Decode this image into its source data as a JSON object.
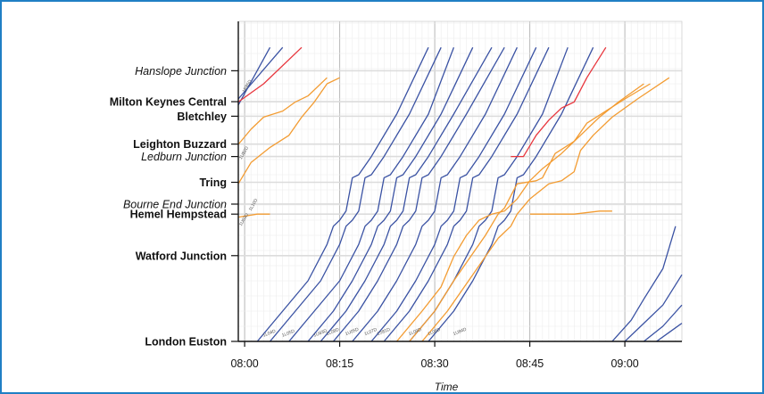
{
  "chart_data": {
    "type": "line",
    "title": "",
    "xlabel": "Time",
    "ylabel": "",
    "x_ticks": [
      "08:00",
      "08:15",
      "08:30",
      "08:45",
      "09:00"
    ],
    "x_range_minutes": [
      -1,
      69
    ],
    "grid": true,
    "stations": [
      {
        "name": "Hanslope Junction",
        "style": "italic",
        "pos": 89.3
      },
      {
        "name": "Milton Keynes Central",
        "style": "bold",
        "pos": 79.1
      },
      {
        "name": "Bletchley",
        "style": "bold",
        "pos": 74.3
      },
      {
        "name": "Leighton Buzzard",
        "style": "bold",
        "pos": 65.1
      },
      {
        "name": "Ledburn Junction",
        "style": "italic",
        "pos": 61.0
      },
      {
        "name": "Tring",
        "style": "bold",
        "pos": 52.5
      },
      {
        "name": "Bourne End Junction",
        "style": "italic",
        "pos": 45.3
      },
      {
        "name": "Hemel Hempstead",
        "style": "bold",
        "pos": 42.0
      },
      {
        "name": "Watford Junction",
        "style": "bold",
        "pos": 28.3
      },
      {
        "name": "London Euston",
        "style": "bold",
        "pos": 0.0
      }
    ],
    "colors": {
      "fast": "#3a52a3",
      "slow": "#f39c32",
      "red": "#e8363d",
      "grid": "#e3e3e3",
      "axis": "#111111"
    },
    "series": [
      {
        "color": "fast",
        "points": [
          [
            -1,
            78
          ],
          [
            4,
            97
          ]
        ]
      },
      {
        "color": "fast",
        "points": [
          [
            -1,
            80
          ],
          [
            6,
            97
          ]
        ]
      },
      {
        "color": "red",
        "points": [
          [
            -1,
            79
          ],
          [
            3,
            85
          ],
          [
            9,
            97
          ]
        ]
      },
      {
        "color": "slow",
        "points": [
          [
            -1,
            65
          ],
          [
            1,
            70
          ],
          [
            3,
            74
          ],
          [
            6,
            76
          ],
          [
            8,
            79
          ],
          [
            10,
            81
          ],
          [
            13,
            87
          ]
        ]
      },
      {
        "color": "slow",
        "points": [
          [
            -1,
            52
          ],
          [
            1,
            59
          ],
          [
            4,
            64
          ],
          [
            7,
            68
          ],
          [
            9,
            74
          ],
          [
            11,
            79
          ],
          [
            13,
            85
          ],
          [
            15,
            87
          ]
        ]
      },
      {
        "color": "slow",
        "points": [
          [
            -1,
            41
          ],
          [
            2,
            42
          ],
          [
            4,
            42
          ]
        ]
      },
      {
        "color": "fast",
        "points": [
          [
            2,
            0
          ],
          [
            6,
            10
          ],
          [
            10,
            20
          ],
          [
            13,
            32
          ],
          [
            14,
            38
          ],
          [
            15,
            40
          ],
          [
            16,
            43
          ],
          [
            17,
            54
          ],
          [
            18,
            55
          ],
          [
            20,
            61
          ],
          [
            24,
            75
          ],
          [
            29,
            97
          ]
        ]
      },
      {
        "color": "fast",
        "points": [
          [
            4,
            0
          ],
          [
            8,
            10
          ],
          [
            12,
            20
          ],
          [
            15,
            32
          ],
          [
            16,
            38
          ],
          [
            17,
            40
          ],
          [
            18,
            43
          ],
          [
            19,
            54
          ],
          [
            20,
            55
          ],
          [
            22,
            61
          ],
          [
            26,
            75
          ],
          [
            31,
            97
          ]
        ]
      },
      {
        "color": "fast",
        "points": [
          [
            7,
            0
          ],
          [
            11,
            10
          ],
          [
            15,
            20
          ],
          [
            18,
            32
          ],
          [
            19,
            38
          ],
          [
            20,
            40
          ],
          [
            21,
            43
          ],
          [
            22,
            54
          ],
          [
            23,
            55
          ],
          [
            25,
            61
          ],
          [
            29,
            75
          ],
          [
            33,
            97
          ]
        ]
      },
      {
        "color": "fast",
        "points": [
          [
            10,
            0
          ],
          [
            14,
            10
          ],
          [
            17,
            20
          ],
          [
            20,
            32
          ],
          [
            21,
            38
          ],
          [
            22,
            40
          ],
          [
            23,
            43
          ],
          [
            24,
            54
          ],
          [
            25,
            55
          ],
          [
            27,
            61
          ],
          [
            31,
            75
          ],
          [
            36,
            97
          ]
        ]
      },
      {
        "color": "fast",
        "points": [
          [
            12,
            0
          ],
          [
            16,
            10
          ],
          [
            19,
            20
          ],
          [
            22,
            32
          ],
          [
            23,
            38
          ],
          [
            24,
            40
          ],
          [
            25,
            43
          ],
          [
            26,
            54
          ],
          [
            27,
            55
          ],
          [
            29,
            61
          ],
          [
            33,
            75
          ],
          [
            39,
            97
          ]
        ]
      },
      {
        "color": "fast",
        "points": [
          [
            14,
            0
          ],
          [
            18,
            10
          ],
          [
            21,
            20
          ],
          [
            24,
            32
          ],
          [
            25,
            38
          ],
          [
            26,
            40
          ],
          [
            27,
            43
          ],
          [
            28,
            54
          ],
          [
            29,
            55
          ],
          [
            31,
            61
          ],
          [
            35,
            75
          ],
          [
            41,
            97
          ]
        ]
      },
      {
        "color": "fast",
        "points": [
          [
            17,
            0
          ],
          [
            21,
            10
          ],
          [
            24,
            20
          ],
          [
            27,
            32
          ],
          [
            28,
            38
          ],
          [
            29,
            40
          ],
          [
            30,
            43
          ],
          [
            31,
            54
          ],
          [
            32,
            55
          ],
          [
            34,
            61
          ],
          [
            38,
            75
          ],
          [
            43,
            97
          ]
        ]
      },
      {
        "color": "fast",
        "points": [
          [
            20,
            0
          ],
          [
            24,
            10
          ],
          [
            27,
            20
          ],
          [
            30,
            32
          ],
          [
            31,
            38
          ],
          [
            32,
            40
          ],
          [
            33,
            43
          ],
          [
            34,
            54
          ],
          [
            35,
            55
          ],
          [
            37,
            61
          ],
          [
            41,
            75
          ],
          [
            46,
            97
          ]
        ]
      },
      {
        "color": "fast",
        "points": [
          [
            22,
            0
          ],
          [
            26,
            10
          ],
          [
            29,
            20
          ],
          [
            32,
            32
          ],
          [
            33,
            38
          ],
          [
            34,
            40
          ],
          [
            35,
            43
          ],
          [
            36,
            54
          ],
          [
            37,
            55
          ],
          [
            39,
            61
          ],
          [
            43,
            75
          ],
          [
            48,
            97
          ]
        ]
      },
      {
        "color": "fast",
        "points": [
          [
            26,
            0
          ],
          [
            30,
            10
          ],
          [
            33,
            20
          ],
          [
            36,
            32
          ],
          [
            37,
            38
          ],
          [
            38,
            40
          ],
          [
            39,
            43
          ],
          [
            40,
            54
          ],
          [
            41,
            55
          ],
          [
            43,
            61
          ],
          [
            47,
            75
          ],
          [
            51,
            97
          ]
        ]
      },
      {
        "color": "fast",
        "points": [
          [
            29,
            0
          ],
          [
            33,
            10
          ],
          [
            36,
            20
          ],
          [
            39,
            32
          ],
          [
            40,
            38
          ],
          [
            41,
            40
          ],
          [
            42,
            43
          ],
          [
            43,
            54
          ],
          [
            44,
            55
          ],
          [
            46,
            61
          ],
          [
            50,
            75
          ],
          [
            55,
            97
          ]
        ]
      },
      {
        "color": "slow",
        "points": [
          [
            24,
            0
          ],
          [
            28,
            10
          ],
          [
            31,
            18
          ],
          [
            33,
            28
          ],
          [
            35,
            35
          ],
          [
            37,
            40
          ],
          [
            39,
            42
          ],
          [
            41,
            43
          ],
          [
            43,
            47
          ],
          [
            45,
            53
          ],
          [
            47,
            57
          ],
          [
            50,
            62
          ],
          [
            53,
            68
          ],
          [
            56,
            74
          ],
          [
            59,
            79
          ],
          [
            63,
            85
          ]
        ]
      },
      {
        "color": "slow",
        "points": [
          [
            26,
            0
          ],
          [
            30,
            10
          ],
          [
            33,
            20
          ],
          [
            35,
            26
          ],
          [
            36,
            29
          ],
          [
            38,
            35
          ],
          [
            40,
            42
          ],
          [
            41,
            44
          ],
          [
            43,
            52
          ],
          [
            46,
            53
          ],
          [
            47,
            54
          ],
          [
            49,
            62
          ],
          [
            52,
            66
          ],
          [
            54,
            72
          ],
          [
            57,
            76
          ],
          [
            60,
            80
          ],
          [
            64,
            85
          ]
        ]
      },
      {
        "color": "slow",
        "points": [
          [
            28,
            0
          ],
          [
            32,
            10
          ],
          [
            34,
            16
          ],
          [
            36,
            22
          ],
          [
            38,
            28
          ],
          [
            40,
            34
          ],
          [
            42,
            38
          ],
          [
            43,
            42
          ],
          [
            45,
            47
          ],
          [
            48,
            52
          ],
          [
            50,
            53
          ],
          [
            52,
            56
          ],
          [
            53,
            63
          ],
          [
            55,
            68
          ],
          [
            58,
            74
          ],
          [
            62,
            80
          ],
          [
            67,
            87
          ]
        ]
      },
      {
        "color": "slow",
        "points": [
          [
            45,
            42
          ],
          [
            52,
            42
          ],
          [
            56,
            43
          ],
          [
            58,
            43
          ]
        ]
      },
      {
        "color": "red",
        "points": [
          [
            42,
            61
          ],
          [
            44,
            61
          ],
          [
            46,
            68
          ],
          [
            48,
            73
          ],
          [
            50,
            77
          ],
          [
            52,
            79
          ],
          [
            54,
            87
          ],
          [
            57,
            97
          ]
        ]
      },
      {
        "color": "fast",
        "points": [
          [
            58,
            0
          ],
          [
            61,
            7
          ],
          [
            63,
            14
          ],
          [
            66,
            24
          ],
          [
            68,
            38
          ]
        ]
      },
      {
        "color": "fast",
        "points": [
          [
            60,
            0
          ],
          [
            63,
            6
          ],
          [
            66,
            12
          ],
          [
            69,
            22
          ]
        ]
      },
      {
        "color": "fast",
        "points": [
          [
            63,
            0
          ],
          [
            66,
            5
          ],
          [
            69,
            12
          ]
        ]
      },
      {
        "color": "fast",
        "points": [
          [
            65,
            0
          ],
          [
            67,
            3
          ],
          [
            69,
            6
          ]
        ]
      }
    ],
    "train_ids": [
      "1L04D",
      "1L05D",
      "1U83D",
      "1L08D",
      "1U05D",
      "1L07D",
      "1S81D",
      "1L09D",
      "1L06D",
      "1U84D",
      "1U63D",
      "1U82D",
      "1R85D",
      "1L10D"
    ]
  }
}
